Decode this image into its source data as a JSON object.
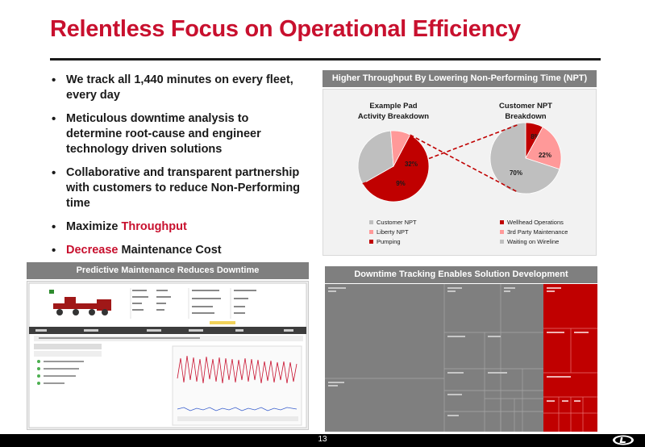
{
  "slide": {
    "title": "Relentless Focus on Operational Efficiency",
    "page_number": "13"
  },
  "bullets": {
    "b1": "We track all 1,440 minutes on every fleet, every day",
    "b2": "Meticulous downtime analysis to determine root-cause and engineer technology driven solutions",
    "b3": "Collaborative and transparent partnership with customers to reduce Non-Performing time",
    "b4_prefix": "Maximize ",
    "b4_highlight": "Throughput",
    "b5_highlight": "Decrease",
    "b5_suffix": " Maintenance Cost"
  },
  "panels": {
    "throughput_header": "Higher Throughput By Lowering Non-Performing Time (NPT)",
    "maintenance_header": "Predictive Maintenance Reduces Downtime",
    "downtime_header": "Downtime Tracking Enables Solution Development"
  },
  "chart_data": [
    {
      "type": "pie",
      "title_line1": "Example Pad",
      "title_line2": "Activity Breakdown",
      "slices": [
        {
          "name": "Pumping",
          "value": 59,
          "label": "59%",
          "color": "#c00000"
        },
        {
          "name": "Customer NPT",
          "value": 32,
          "label": "32%",
          "color": "#bfbfbf"
        },
        {
          "name": "Liberty NPT",
          "value": 9,
          "label": "9%",
          "color": "#ff9999"
        }
      ],
      "legend": [
        {
          "label": "Customer NPT",
          "color": "#bfbfbf"
        },
        {
          "label": "Liberty NPT",
          "color": "#ff9999"
        },
        {
          "label": "Pumping",
          "color": "#c00000"
        }
      ],
      "legend_position": "bottom"
    },
    {
      "type": "pie",
      "title_line1": "Customer NPT",
      "title_line2": "Breakdown",
      "slices": [
        {
          "name": "Wellhead Operations",
          "value": 8,
          "label": "8%",
          "color": "#c00000"
        },
        {
          "name": "3rd Party Maintenance",
          "value": 22,
          "label": "22%",
          "color": "#ff9999"
        },
        {
          "name": "Waiting on Wireline",
          "value": 70,
          "label": "70%",
          "color": "#bfbfbf"
        }
      ],
      "legend": [
        {
          "label": "Wellhead Operations",
          "color": "#c00000"
        },
        {
          "label": "3rd Party Maintenance",
          "color": "#ff9999"
        },
        {
          "label": "Waiting on Wireline",
          "color": "#bfbfbf"
        }
      ],
      "legend_position": "bottom"
    }
  ],
  "colors": {
    "accent": "#c8102e",
    "panel_header": "#7f7f7f",
    "treemap_gray": "#7f7f7f",
    "treemap_red": "#c00000"
  }
}
